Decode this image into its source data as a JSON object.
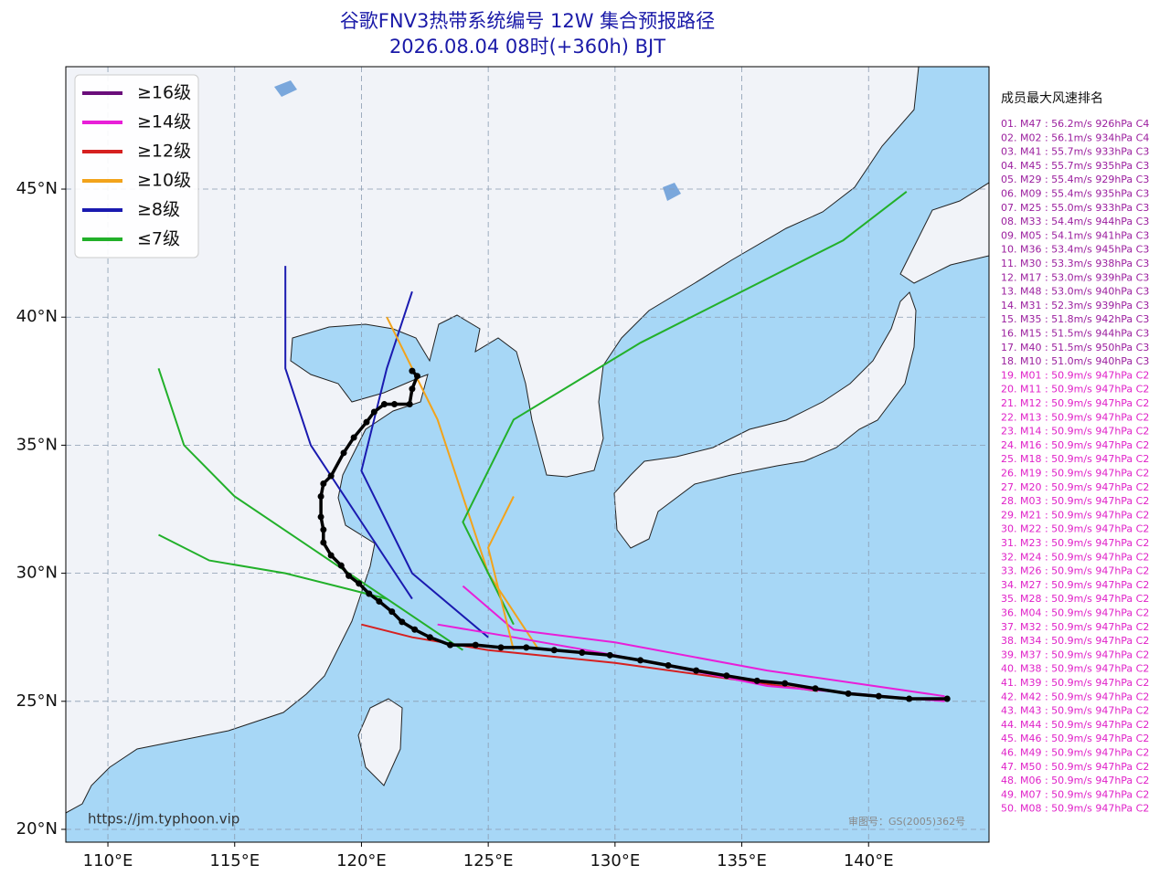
{
  "header": {
    "title": "谷歌FNV3热带系统编号 12W 集合预报路径",
    "subtitle": "2026.08.04 08时(+360h) BJT"
  },
  "map": {
    "xlim": [
      108.34,
      144.75
    ],
    "ylim": [
      19.5,
      49.78
    ],
    "xticks": [
      {
        "value": 110,
        "label": "110°E"
      },
      {
        "value": 115,
        "label": "115°E"
      },
      {
        "value": 120,
        "label": "120°E"
      },
      {
        "value": 125,
        "label": "125°E"
      },
      {
        "value": 130,
        "label": "130°E"
      },
      {
        "value": 135,
        "label": "135°E"
      },
      {
        "value": 140,
        "label": "140°E"
      }
    ],
    "yticks": [
      {
        "value": 20,
        "label": "20°N"
      },
      {
        "value": 25,
        "label": "25°N"
      },
      {
        "value": 30,
        "label": "30°N"
      },
      {
        "value": 35,
        "label": "35°N"
      },
      {
        "value": 40,
        "label": "40°N"
      },
      {
        "value": 45,
        "label": "45°N"
      }
    ],
    "grid": true,
    "source": "https://jm.typhoon.vip",
    "approval": "审图号：GS(2005)362号"
  },
  "legend": [
    {
      "label": "≥16级",
      "color": "#6a0d7a"
    },
    {
      "label": "≥14级",
      "color": "#e81fd8"
    },
    {
      "label": "≥12级",
      "color": "#d62020"
    },
    {
      "label": "≥10级",
      "color": "#f2a31b"
    },
    {
      "label": "≥8级",
      "color": "#1a1ab0"
    },
    {
      "label": "≤7级",
      "color": "#22b02a"
    }
  ],
  "mean_track": {
    "color": "#000000",
    "lon": [
      143.1,
      141.6,
      140.4,
      139.2,
      137.9,
      136.7,
      135.6,
      134.4,
      133.2,
      132.1,
      131.0,
      129.8,
      128.7,
      127.6,
      126.5,
      125.5,
      124.5,
      123.5,
      122.7,
      122.1,
      121.6,
      121.2,
      120.7,
      120.3,
      119.9,
      119.5,
      119.2,
      118.8,
      118.5,
      118.5,
      118.4,
      118.4,
      118.5,
      118.8,
      119.3,
      119.7,
      120.2,
      120.5,
      120.9,
      121.3,
      121.9,
      122.0,
      122.2,
      122.0
    ],
    "lat": [
      25.1,
      25.1,
      25.2,
      25.3,
      25.5,
      25.7,
      25.8,
      26.0,
      26.2,
      26.4,
      26.6,
      26.8,
      26.9,
      27.0,
      27.1,
      27.1,
      27.2,
      27.2,
      27.5,
      27.8,
      28.1,
      28.5,
      28.9,
      29.2,
      29.6,
      29.9,
      30.3,
      30.7,
      31.2,
      31.7,
      32.2,
      33.0,
      33.5,
      33.8,
      34.7,
      35.3,
      35.9,
      36.3,
      36.6,
      36.6,
      36.6,
      37.2,
      37.7,
      37.9
    ]
  },
  "tracks": [
    {
      "color": "#22b02a",
      "lon": [
        124,
        121,
        117,
        114,
        112
      ],
      "lat": [
        27,
        29,
        30,
        30.5,
        31.5
      ]
    },
    {
      "color": "#1a1ab0",
      "lon": [
        125,
        122,
        120,
        121,
        122
      ],
      "lat": [
        27.5,
        30,
        34,
        38,
        41
      ]
    },
    {
      "color": "#f2a31b",
      "lon": [
        127,
        125,
        124,
        123,
        121
      ],
      "lat": [
        27,
        30,
        33,
        36,
        40
      ]
    },
    {
      "color": "#22b02a",
      "lon": [
        126,
        124,
        126,
        131,
        139,
        141.5
      ],
      "lat": [
        28,
        32,
        36,
        39,
        43,
        44.9
      ]
    },
    {
      "color": "#d62020",
      "lon": [
        138,
        130,
        125,
        122,
        120
      ],
      "lat": [
        25.4,
        26.5,
        27,
        27.5,
        28
      ]
    },
    {
      "color": "#e81fd8",
      "lon": [
        143,
        136,
        130,
        126,
        123
      ],
      "lat": [
        25,
        25.6,
        26.8,
        27.5,
        28
      ]
    },
    {
      "color": "#e81fd8",
      "lon": [
        143,
        136,
        130,
        126,
        124
      ],
      "lat": [
        25.2,
        26.2,
        27.3,
        27.8,
        29.5
      ]
    },
    {
      "color": "#f2a31b",
      "lon": [
        126,
        125.5,
        125,
        126
      ],
      "lat": [
        27,
        29,
        31,
        33
      ]
    },
    {
      "color": "#1a1ab0",
      "lon": [
        122,
        120,
        118,
        117,
        117
      ],
      "lat": [
        29,
        32,
        35,
        38,
        42
      ]
    },
    {
      "color": "#22b02a",
      "lon": [
        121,
        118,
        115,
        113,
        112
      ],
      "lat": [
        29,
        31,
        33,
        35,
        38
      ]
    }
  ],
  "ranking": {
    "title": "成员最大风速排名",
    "items": [
      {
        "text": "01. M47 : 56.2m/s 926hPa C4",
        "color": "#9b1e9e"
      },
      {
        "text": "02. M02 : 56.1m/s 934hPa C4",
        "color": "#9b1e9e"
      },
      {
        "text": "03. M41 : 55.7m/s 933hPa C3",
        "color": "#9b1e9e"
      },
      {
        "text": "04. M45 : 55.7m/s 935hPa C3",
        "color": "#9b1e9e"
      },
      {
        "text": "05. M29 : 55.4m/s 929hPa C3",
        "color": "#9b1e9e"
      },
      {
        "text": "06. M09 : 55.4m/s 935hPa C3",
        "color": "#9b1e9e"
      },
      {
        "text": "07. M25 : 55.0m/s 933hPa C3",
        "color": "#9b1e9e"
      },
      {
        "text": "08. M33 : 54.4m/s 944hPa C3",
        "color": "#9b1e9e"
      },
      {
        "text": "09. M05 : 54.1m/s 941hPa C3",
        "color": "#9b1e9e"
      },
      {
        "text": "10. M36 : 53.4m/s 945hPa C3",
        "color": "#9b1e9e"
      },
      {
        "text": "11. M30 : 53.3m/s 938hPa C3",
        "color": "#9b1e9e"
      },
      {
        "text": "12. M17 : 53.0m/s 939hPa C3",
        "color": "#9b1e9e"
      },
      {
        "text": "13. M48 : 53.0m/s 940hPa C3",
        "color": "#9b1e9e"
      },
      {
        "text": "14. M31 : 52.3m/s 939hPa C3",
        "color": "#9b1e9e"
      },
      {
        "text": "15. M35 : 51.8m/s 942hPa C3",
        "color": "#9b1e9e"
      },
      {
        "text": "16. M15 : 51.5m/s 944hPa C3",
        "color": "#9b1e9e"
      },
      {
        "text": "17. M40 : 51.5m/s 950hPa C3",
        "color": "#9b1e9e"
      },
      {
        "text": "18. M10 : 51.0m/s 940hPa C3",
        "color": "#9b1e9e"
      },
      {
        "text": "19. M01 : 50.9m/s 947hPa C2",
        "color": "#e020c8"
      },
      {
        "text": "20. M11 : 50.9m/s 947hPa C2",
        "color": "#e020c8"
      },
      {
        "text": "21. M12 : 50.9m/s 947hPa C2",
        "color": "#e020c8"
      },
      {
        "text": "22. M13 : 50.9m/s 947hPa C2",
        "color": "#e020c8"
      },
      {
        "text": "23. M14 : 50.9m/s 947hPa C2",
        "color": "#e020c8"
      },
      {
        "text": "24. M16 : 50.9m/s 947hPa C2",
        "color": "#e020c8"
      },
      {
        "text": "25. M18 : 50.9m/s 947hPa C2",
        "color": "#e020c8"
      },
      {
        "text": "26. M19 : 50.9m/s 947hPa C2",
        "color": "#e020c8"
      },
      {
        "text": "27. M20 : 50.9m/s 947hPa C2",
        "color": "#e020c8"
      },
      {
        "text": "28. M03 : 50.9m/s 947hPa C2",
        "color": "#e020c8"
      },
      {
        "text": "29. M21 : 50.9m/s 947hPa C2",
        "color": "#e020c8"
      },
      {
        "text": "30. M22 : 50.9m/s 947hPa C2",
        "color": "#e020c8"
      },
      {
        "text": "31. M23 : 50.9m/s 947hPa C2",
        "color": "#e020c8"
      },
      {
        "text": "32. M24 : 50.9m/s 947hPa C2",
        "color": "#e020c8"
      },
      {
        "text": "33. M26 : 50.9m/s 947hPa C2",
        "color": "#e020c8"
      },
      {
        "text": "34. M27 : 50.9m/s 947hPa C2",
        "color": "#e020c8"
      },
      {
        "text": "35. M28 : 50.9m/s 947hPa C2",
        "color": "#e020c8"
      },
      {
        "text": "36. M04 : 50.9m/s 947hPa C2",
        "color": "#e020c8"
      },
      {
        "text": "37. M32 : 50.9m/s 947hPa C2",
        "color": "#e020c8"
      },
      {
        "text": "38. M34 : 50.9m/s 947hPa C2",
        "color": "#e020c8"
      },
      {
        "text": "39. M37 : 50.9m/s 947hPa C2",
        "color": "#e020c8"
      },
      {
        "text": "40. M38 : 50.9m/s 947hPa C2",
        "color": "#e020c8"
      },
      {
        "text": "41. M39 : 50.9m/s 947hPa C2",
        "color": "#e020c8"
      },
      {
        "text": "42. M42 : 50.9m/s 947hPa C2",
        "color": "#e020c8"
      },
      {
        "text": "43. M43 : 50.9m/s 947hPa C2",
        "color": "#e020c8"
      },
      {
        "text": "44. M44 : 50.9m/s 947hPa C2",
        "color": "#e020c8"
      },
      {
        "text": "45. M46 : 50.9m/s 947hPa C2",
        "color": "#e020c8"
      },
      {
        "text": "46. M49 : 50.9m/s 947hPa C2",
        "color": "#e020c8"
      },
      {
        "text": "47. M50 : 50.9m/s 947hPa C2",
        "color": "#e020c8"
      },
      {
        "text": "48. M06 : 50.9m/s 947hPa C2",
        "color": "#e020c8"
      },
      {
        "text": "49. M07 : 50.9m/s 947hPa C2",
        "color": "#e020c8"
      },
      {
        "text": "50. M08 : 50.9m/s 947hPa C2",
        "color": "#e020c8"
      }
    ]
  }
}
